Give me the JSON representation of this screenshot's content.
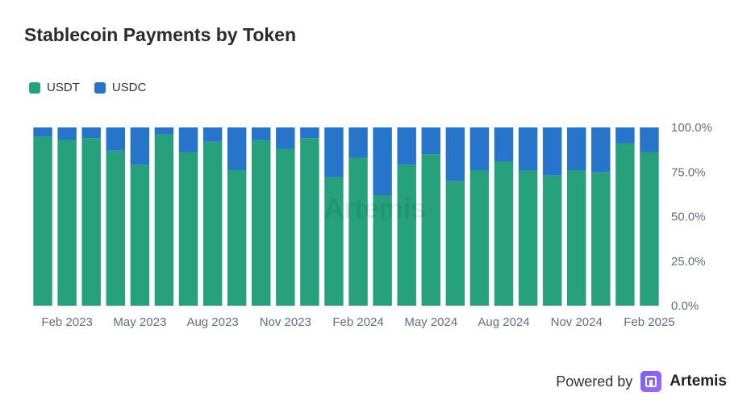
{
  "title": "Stablecoin Payments by Token",
  "colors": {
    "USDT": "#26a17b",
    "USDC": "#2775ca"
  },
  "footer": {
    "powered_by": "Powered by",
    "brand": "Artemis"
  },
  "watermark": "Artemis",
  "chart_data": {
    "type": "bar",
    "stacked": true,
    "title": "Stablecoin Payments by Token",
    "categories": [
      "Jan 2023",
      "Feb 2023",
      "Mar 2023",
      "Apr 2023",
      "May 2023",
      "Jun 2023",
      "Jul 2023",
      "Aug 2023",
      "Sep 2023",
      "Oct 2023",
      "Nov 2023",
      "Dec 2023",
      "Jan 2024",
      "Feb 2024",
      "Mar 2024",
      "Apr 2024",
      "May 2024",
      "Jun 2024",
      "Jul 2024",
      "Aug 2024",
      "Sep 2024",
      "Oct 2024",
      "Nov 2024",
      "Dec 2024",
      "Jan 2025",
      "Feb 2025"
    ],
    "x_tick_labels": [
      "Feb 2023",
      "May 2023",
      "Aug 2023",
      "Nov 2023",
      "Feb 2024",
      "May 2024",
      "Aug 2024",
      "Nov 2024",
      "Feb 2025"
    ],
    "series": [
      {
        "name": "USDT",
        "values": [
          95,
          93,
          94,
          87,
          79,
          96,
          86,
          92,
          76,
          93,
          88,
          94,
          72,
          83,
          62,
          79,
          85,
          70,
          76,
          81,
          76,
          73,
          76,
          75,
          91,
          86
        ]
      },
      {
        "name": "USDC",
        "values": [
          5,
          7,
          6,
          13,
          21,
          4,
          14,
          8,
          24,
          7,
          12,
          6,
          28,
          17,
          38,
          21,
          15,
          30,
          24,
          19,
          24,
          27,
          24,
          25,
          9,
          14
        ]
      }
    ],
    "y_tick_labels": [
      "0.0%",
      "25.0%",
      "50.0%",
      "75.0%",
      "100.0%"
    ],
    "ylim": [
      0,
      100
    ],
    "y_axis_side": "right",
    "legend_position": "top-left",
    "grid": false
  }
}
